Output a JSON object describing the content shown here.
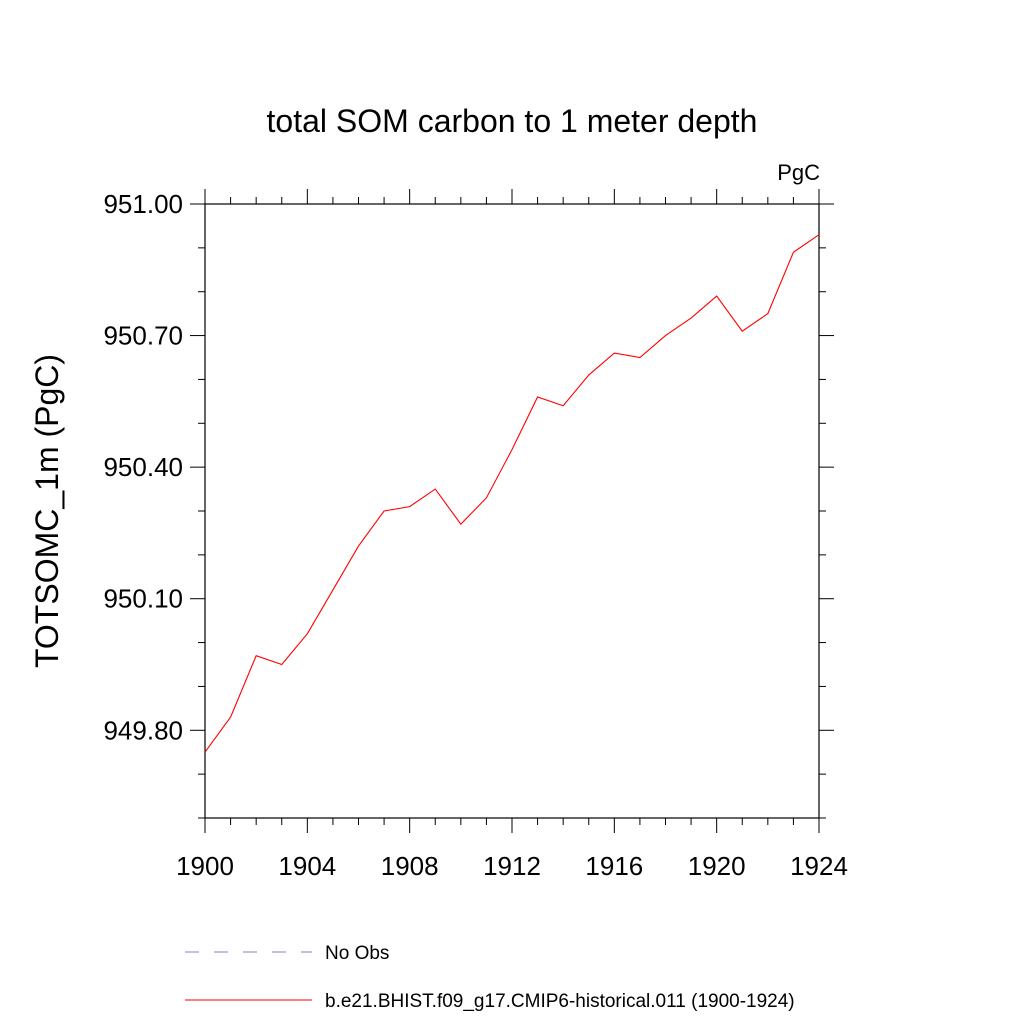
{
  "chart_data": {
    "type": "line",
    "title": "total SOM carbon to 1 meter depth",
    "units_label": "PgC",
    "ylabel": "TOTSOMC_1m  (PgC)",
    "xlabel": "",
    "xlim": [
      1900,
      1924
    ],
    "ylim": [
      949.6,
      951.0
    ],
    "x_ticks": [
      1900,
      1904,
      1908,
      1912,
      1916,
      1920,
      1924
    ],
    "x_tick_labels": [
      "1900",
      "1904",
      "1908",
      "1912",
      "1916",
      "1920",
      "1924"
    ],
    "y_ticks": [
      949.8,
      950.1,
      950.4,
      950.7,
      951.0
    ],
    "y_tick_labels": [
      "949.80",
      "950.10",
      "950.40",
      "950.70",
      "951.00"
    ],
    "grid": false,
    "legend_placement": "bottom",
    "series": [
      {
        "name": "b.e21.BHIST.f09_g17.CMIP6-historical.011 (1900-1924)",
        "color": "#ff0000",
        "dash": "solid",
        "x": [
          1900,
          1901,
          1902,
          1903,
          1904,
          1905,
          1906,
          1907,
          1908,
          1909,
          1910,
          1911,
          1912,
          1913,
          1914,
          1915,
          1916,
          1917,
          1918,
          1919,
          1920,
          1921,
          1922,
          1923,
          1924
        ],
        "values": [
          949.75,
          949.83,
          949.97,
          949.95,
          950.02,
          950.12,
          950.22,
          950.3,
          950.31,
          950.35,
          950.27,
          950.33,
          950.44,
          950.56,
          950.54,
          950.61,
          950.66,
          950.65,
          950.7,
          950.74,
          950.79,
          950.71,
          950.75,
          950.89,
          950.93
        ]
      }
    ],
    "legend": [
      {
        "label": "No Obs",
        "color": "#8080c0",
        "dash": "dashed"
      },
      {
        "label": "b.e21.BHIST.f09_g17.CMIP6-historical.011 (1900-1924)",
        "color": "#ff0000",
        "dash": "solid"
      }
    ]
  }
}
